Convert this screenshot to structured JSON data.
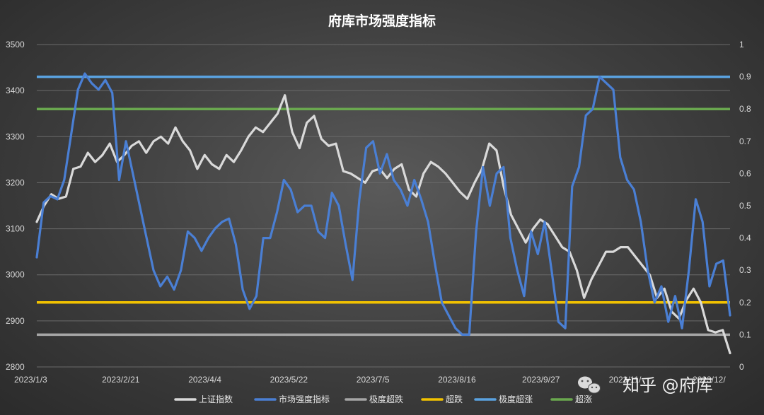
{
  "chart_data": {
    "type": "line",
    "title": "府库市场强度指标",
    "x_ticks": [
      "2023/1/3",
      "2023/2/21",
      "2023/4/4",
      "2023/5/22",
      "2023/7/5",
      "2023/8/16",
      "2023/9/27",
      "2023/11/",
      "2023/12/"
    ],
    "left_axis": {
      "ylim": [
        2800,
        3500
      ],
      "ticks": [
        2800,
        2900,
        3000,
        3100,
        3200,
        3300,
        3400,
        3500
      ]
    },
    "right_axis": {
      "ylim": [
        0,
        1
      ],
      "ticks": [
        "0",
        "0.1",
        "0.2",
        "0.3",
        "0.4",
        "0.5",
        "0.6",
        "0.7",
        "0.8",
        "0.9",
        "1"
      ]
    },
    "grid": true,
    "legend_position": "bottom",
    "series": [
      {
        "name": "上证指数",
        "axis": "left",
        "color": "#d9d9d9",
        "values": [
          3115,
          3150,
          3175,
          3165,
          3170,
          3230,
          3235,
          3265,
          3245,
          3260,
          3285,
          3245,
          3260,
          3280,
          3290,
          3265,
          3290,
          3300,
          3285,
          3320,
          3290,
          3270,
          3230,
          3260,
          3240,
          3230,
          3260,
          3245,
          3270,
          3300,
          3320,
          3310,
          3330,
          3350,
          3390,
          3310,
          3275,
          3330,
          3345,
          3295,
          3280,
          3285,
          3225,
          3220,
          3210,
          3200,
          3225,
          3230,
          3210,
          3230,
          3240,
          3185,
          3170,
          3220,
          3245,
          3235,
          3220,
          3200,
          3180,
          3165,
          3200,
          3230,
          3285,
          3270,
          3190,
          3130,
          3100,
          3070,
          3100,
          3120,
          3110,
          3085,
          3060,
          3050,
          3010,
          2950,
          2990,
          3020,
          3050,
          3050,
          3060,
          3060,
          3040,
          3020,
          3000,
          2950,
          2970,
          2920,
          2905,
          2945,
          2970,
          2940,
          2880,
          2875,
          2880,
          2830
        ]
      },
      {
        "name": "市场强度指标",
        "axis": "right",
        "color": "#4a7fd4",
        "values": [
          0.34,
          0.51,
          0.53,
          0.52,
          0.58,
          0.72,
          0.86,
          0.91,
          0.88,
          0.86,
          0.89,
          0.85,
          0.58,
          0.7,
          0.6,
          0.5,
          0.4,
          0.3,
          0.25,
          0.28,
          0.24,
          0.3,
          0.42,
          0.4,
          0.36,
          0.4,
          0.43,
          0.45,
          0.46,
          0.38,
          0.24,
          0.18,
          0.22,
          0.4,
          0.4,
          0.48,
          0.58,
          0.55,
          0.48,
          0.5,
          0.5,
          0.42,
          0.4,
          0.54,
          0.5,
          0.38,
          0.27,
          0.52,
          0.68,
          0.7,
          0.6,
          0.66,
          0.58,
          0.55,
          0.5,
          0.58,
          0.52,
          0.45,
          0.32,
          0.2,
          0.16,
          0.12,
          0.1,
          0.1,
          0.42,
          0.62,
          0.5,
          0.6,
          0.62,
          0.4,
          0.3,
          0.22,
          0.42,
          0.35,
          0.45,
          0.3,
          0.14,
          0.12,
          0.56,
          0.62,
          0.78,
          0.8,
          0.9,
          0.88,
          0.86,
          0.65,
          0.58,
          0.55,
          0.45,
          0.3,
          0.2,
          0.25,
          0.14,
          0.22,
          0.12,
          0.3,
          0.52,
          0.45,
          0.25,
          0.32,
          0.33,
          0.16
        ]
      },
      {
        "name": "极度超跌",
        "axis": "right",
        "color": "#a6a6a6",
        "constant": 0.1
      },
      {
        "name": "超跌",
        "axis": "right",
        "color": "#f2c200",
        "constant": 0.2
      },
      {
        "name": "极度超涨",
        "axis": "right",
        "color": "#5aa2e0",
        "constant": 0.9
      },
      {
        "name": "超涨",
        "axis": "right",
        "color": "#6aa84f",
        "constant": 0.8
      }
    ]
  },
  "watermark": {
    "text": "知乎 @府库",
    "icon": "wechat-icon"
  }
}
